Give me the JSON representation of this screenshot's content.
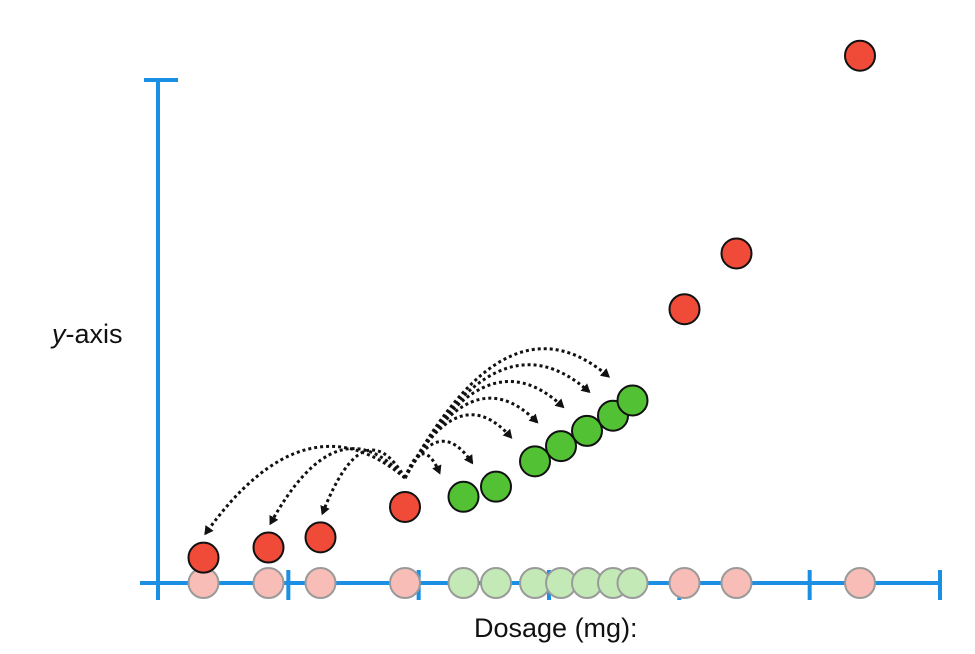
{
  "colors": {
    "axis": "#1a8fe3",
    "red_point": "#f04b38",
    "red_shadow": "#f7bdb6",
    "green_point": "#52c234",
    "green_shadow": "#c3e9b6",
    "outline": "#111111",
    "shadow_outline": "#9a9a9a",
    "arrow": "#111111"
  },
  "labels": {
    "y_axis_italic": "y",
    "y_axis_rest": "-axis",
    "x_axis": "Dosage (mg):"
  },
  "chart_data": {
    "type": "scatter",
    "xlabel": "Dosage (mg):",
    "ylabel": "y-axis",
    "x_tick_count": 6,
    "grid": false,
    "series": [
      {
        "color": "red",
        "points": [
          {
            "x": 0.35,
            "y": 0.05
          },
          {
            "x": 0.85,
            "y": 0.07
          },
          {
            "x": 1.25,
            "y": 0.09
          },
          {
            "x": 1.9,
            "y": 0.15
          },
          {
            "x": 4.05,
            "y": 0.54
          },
          {
            "x": 4.45,
            "y": 0.65
          },
          {
            "x": 5.4,
            "y": 1.04
          }
        ]
      },
      {
        "color": "green",
        "points": [
          {
            "x": 2.35,
            "y": 0.17
          },
          {
            "x": 2.6,
            "y": 0.19
          },
          {
            "x": 2.9,
            "y": 0.24
          },
          {
            "x": 3.1,
            "y": 0.27
          },
          {
            "x": 3.3,
            "y": 0.3
          },
          {
            "x": 3.5,
            "y": 0.33
          },
          {
            "x": 3.65,
            "y": 0.36
          }
        ]
      }
    ],
    "arrows": {
      "style": "dotted",
      "from_x": 1.9,
      "targets": [
        {
          "x": 0.35,
          "y": 0.05
        },
        {
          "x": 0.85,
          "y": 0.07
        },
        {
          "x": 1.25,
          "y": 0.09
        },
        {
          "x": 2.35,
          "y": 0.17
        },
        {
          "x": 2.6,
          "y": 0.19
        },
        {
          "x": 2.9,
          "y": 0.24
        },
        {
          "x": 3.1,
          "y": 0.27
        },
        {
          "x": 3.3,
          "y": 0.3
        },
        {
          "x": 3.5,
          "y": 0.33
        },
        {
          "x": 3.65,
          "y": 0.36
        }
      ]
    }
  }
}
